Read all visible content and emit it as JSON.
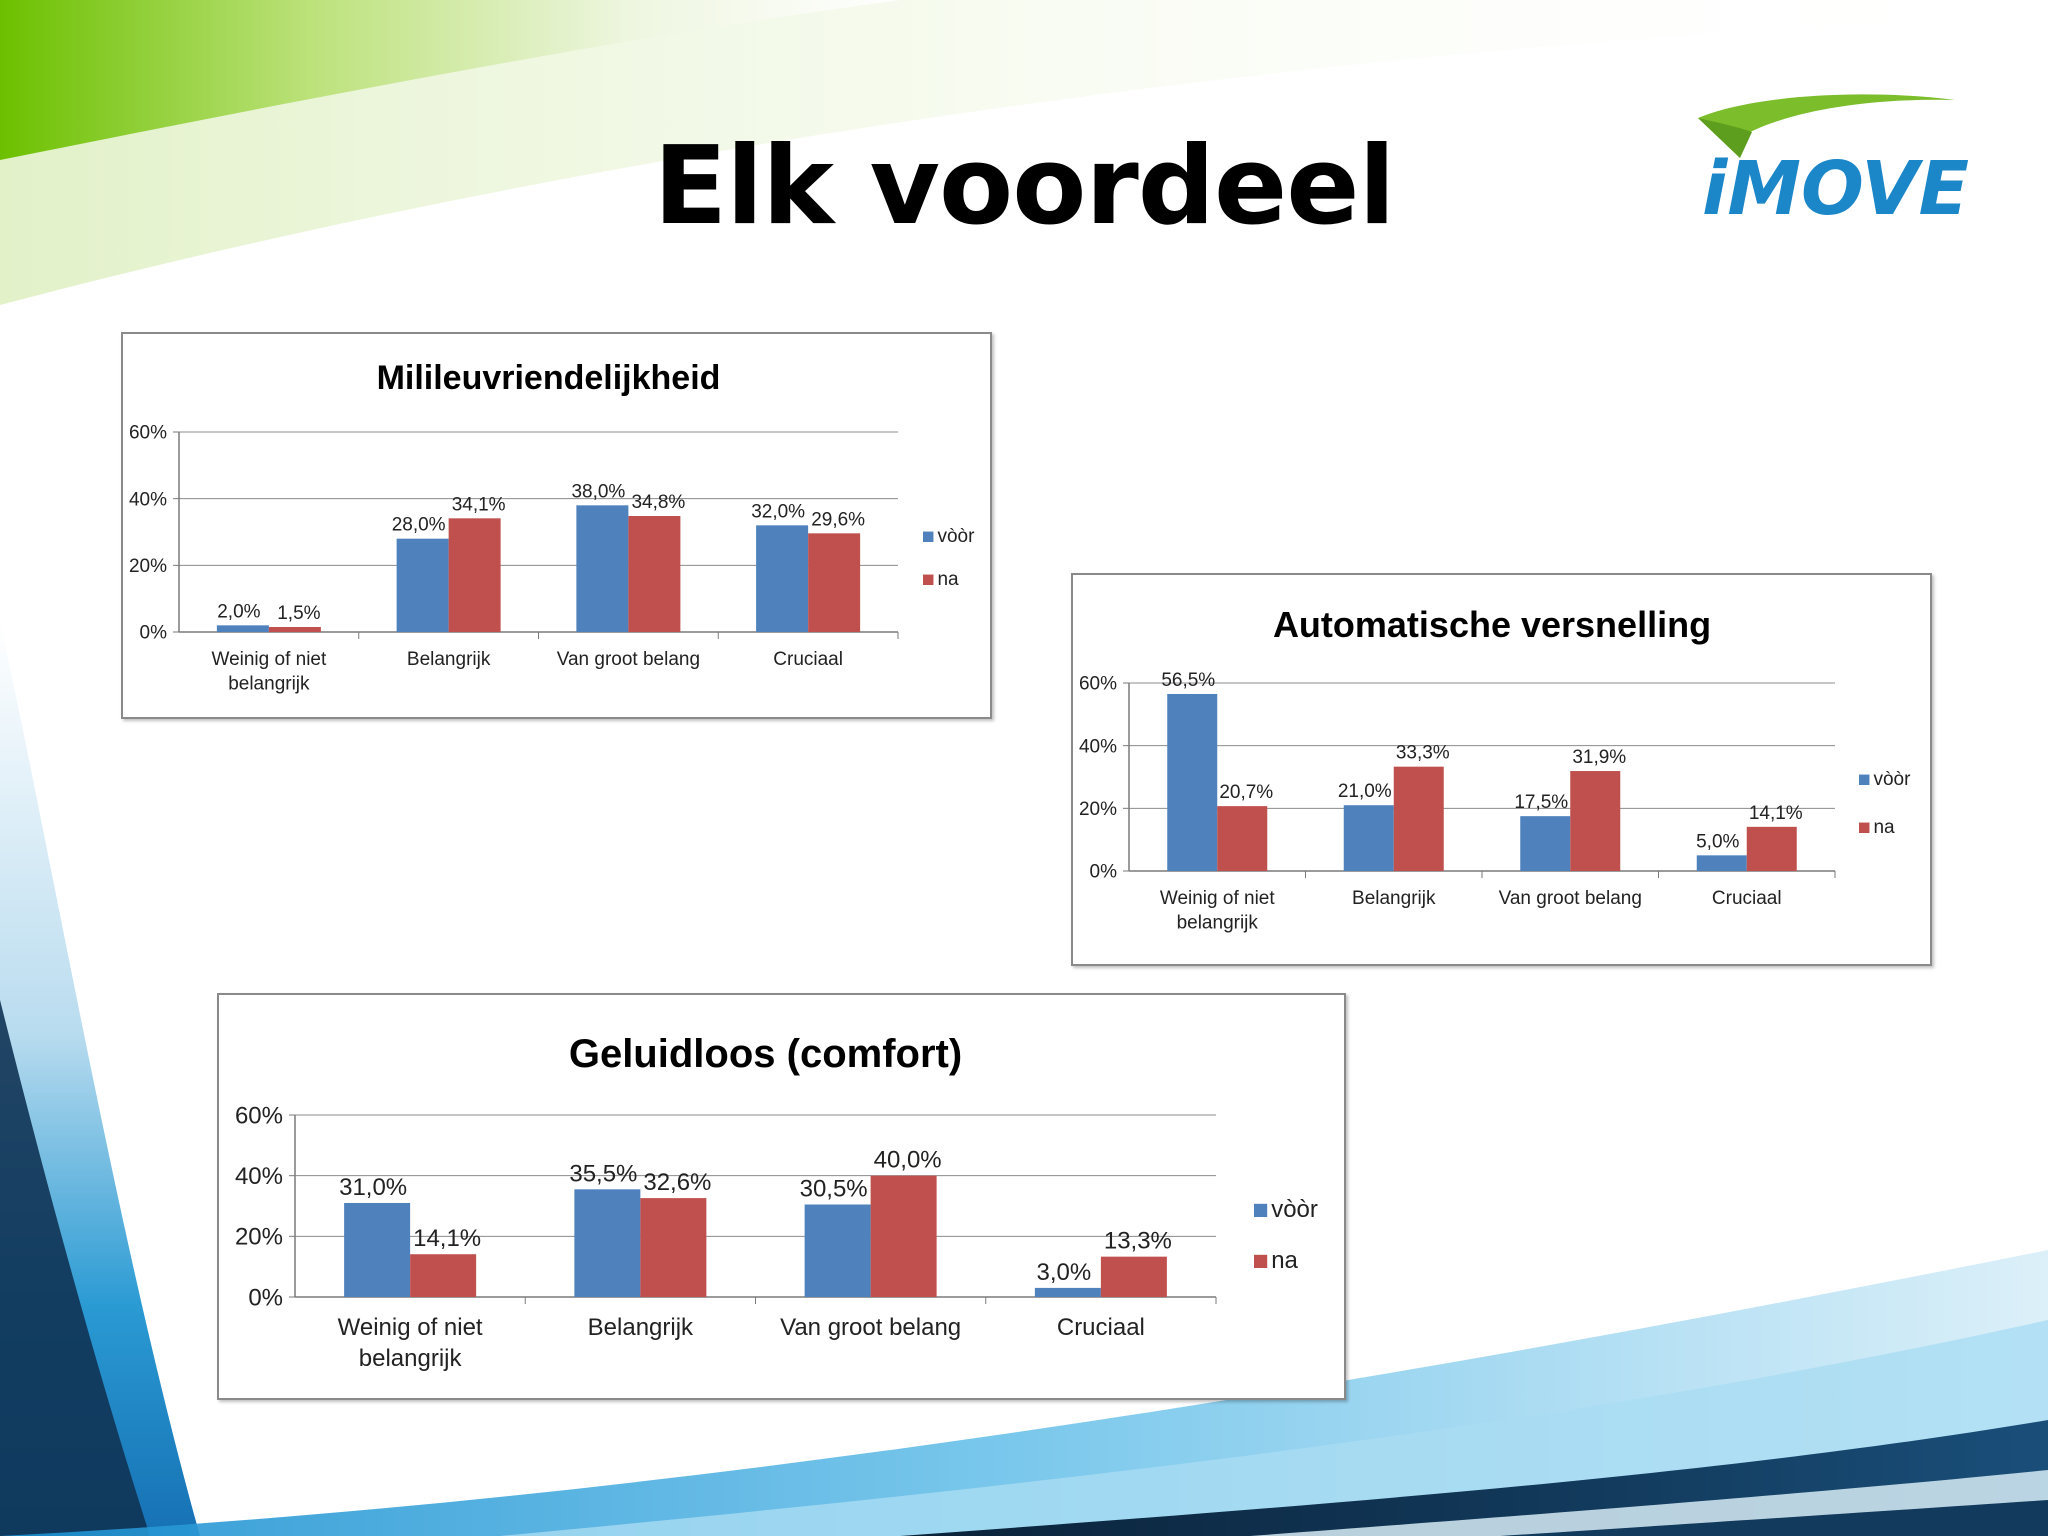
{
  "slide": {
    "title": "Elk voordeel",
    "logo_text": "iMOVE"
  },
  "colors": {
    "series_voor": "#4f81bd",
    "series_na": "#c0504d",
    "grid": "#8c8c8c",
    "green_band": "#7cc400",
    "blue_band": "#1f8ecf",
    "dark_band": "#0e2a47"
  },
  "chart_data": [
    {
      "type": "bar",
      "title": "Milileuvriendelijkheid",
      "categories": [
        "Weinig of niet belangrijk",
        "Belangrijk",
        "Van groot belang",
        "Cruciaal"
      ],
      "series": [
        {
          "name": "vòòr",
          "values": [
            2.0,
            28.0,
            38.0,
            32.0
          ],
          "labels": [
            "2,0%",
            "28,0%",
            "38,0%",
            "32,0%"
          ]
        },
        {
          "name": "na",
          "values": [
            1.5,
            34.1,
            34.8,
            29.6
          ],
          "labels": [
            "1,5%",
            "34,1%",
            "34,8%",
            "29,6%"
          ]
        }
      ],
      "ylim": [
        0,
        60
      ],
      "yticks": [
        "0%",
        "20%",
        "40%",
        "60%"
      ],
      "xlabel": "",
      "ylabel": "",
      "grid": true,
      "legend": "right"
    },
    {
      "type": "bar",
      "title": "Automatische versnelling",
      "categories": [
        "Weinig of niet belangrijk",
        "Belangrijk",
        "Van groot belang",
        "Cruciaal"
      ],
      "series": [
        {
          "name": "vòòr",
          "values": [
            56.5,
            21.0,
            17.5,
            5.0
          ],
          "labels": [
            "56,5%",
            "21,0%",
            "17,5%",
            "5,0%"
          ]
        },
        {
          "name": "na",
          "values": [
            20.7,
            33.3,
            31.9,
            14.1
          ],
          "labels": [
            "20,7%",
            "33,3%",
            "31,9%",
            "14,1%"
          ]
        }
      ],
      "ylim": [
        0,
        60
      ],
      "yticks": [
        "0%",
        "20%",
        "40%",
        "60%"
      ],
      "xlabel": "",
      "ylabel": "",
      "grid": true,
      "legend": "right"
    },
    {
      "type": "bar",
      "title": "Geluidloos (comfort)",
      "categories": [
        "Weinig of niet belangrijk",
        "Belangrijk",
        "Van groot belang",
        "Cruciaal"
      ],
      "series": [
        {
          "name": "vòòr",
          "values": [
            31.0,
            35.5,
            30.5,
            3.0
          ],
          "labels": [
            "31,0%",
            "35,5%",
            "30,5%",
            "3,0%"
          ]
        },
        {
          "name": "na",
          "values": [
            14.1,
            32.6,
            40.0,
            13.3
          ],
          "labels": [
            "14,1%",
            "32,6%",
            "40,0%",
            "13,3%"
          ]
        }
      ],
      "ylim": [
        0,
        60
      ],
      "yticks": [
        "0%",
        "20%",
        "40%",
        "60%"
      ],
      "xlabel": "",
      "ylabel": "",
      "grid": true,
      "legend": "right"
    }
  ]
}
